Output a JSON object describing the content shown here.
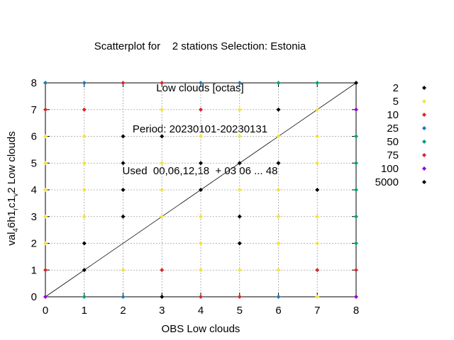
{
  "title_lines": [
    "Scatterplot for    2 stations Selection: Estonia",
    "Low clouds [octas]",
    "Period: 20230101-20230131",
    "Used  00,06,12,18  + 03 06 ... 48"
  ],
  "chart_data": {
    "type": "scatter",
    "xlabel": "OBS Low clouds",
    "ylabel": {
      "main": "val",
      "sub1": "4",
      "mid1": "6h1",
      "sub2": "r",
      "mid2": "c1",
      "sub3": "v",
      "end": "2 Low clouds"
    },
    "xlim": [
      0,
      8
    ],
    "ylim": [
      0,
      8
    ],
    "xticks": [
      "0",
      "1",
      "2",
      "3",
      "4",
      "5",
      "6",
      "7",
      "8"
    ],
    "yticks": [
      "0",
      "1",
      "2",
      "3",
      "4",
      "5",
      "6",
      "7",
      "8"
    ],
    "grid": true,
    "diagonal": true,
    "legend_position": "right",
    "legend": [
      {
        "label": "2",
        "color": "#000000"
      },
      {
        "label": "5",
        "color": "#f0e442"
      },
      {
        "label": "10",
        "color": "#d62728"
      },
      {
        "label": "25",
        "color": "#1f77b4"
      },
      {
        "label": "50",
        "color": "#009e73"
      },
      {
        "label": "75",
        "color": "#d62728"
      },
      {
        "label": "100",
        "color": "#9400d3"
      },
      {
        "label": "5000",
        "color": "#000000"
      }
    ],
    "points": [
      {
        "x": 0,
        "y": 0,
        "c": "#9400d3"
      },
      {
        "x": 0,
        "y": 1,
        "c": "#d62728"
      },
      {
        "x": 0,
        "y": 2,
        "c": "#f0e442"
      },
      {
        "x": 0,
        "y": 3,
        "c": "#f0e442"
      },
      {
        "x": 0,
        "y": 4,
        "c": "#f0e442"
      },
      {
        "x": 0,
        "y": 5,
        "c": "#f0e442"
      },
      {
        "x": 0,
        "y": 6,
        "c": "#f0e442"
      },
      {
        "x": 0,
        "y": 7,
        "c": "#d62728"
      },
      {
        "x": 0,
        "y": 8,
        "c": "#1f77b4"
      },
      {
        "x": 1,
        "y": 0,
        "c": "#009e73"
      },
      {
        "x": 1,
        "y": 1,
        "c": "#000000"
      },
      {
        "x": 1,
        "y": 2,
        "c": "#000000"
      },
      {
        "x": 1,
        "y": 3,
        "c": "#f0e442"
      },
      {
        "x": 1,
        "y": 4,
        "c": "#f0e442"
      },
      {
        "x": 1,
        "y": 5,
        "c": "#f0e442"
      },
      {
        "x": 1,
        "y": 6,
        "c": "#f0e442"
      },
      {
        "x": 1,
        "y": 7,
        "c": "#d62728"
      },
      {
        "x": 1,
        "y": 8,
        "c": "#1f77b4"
      },
      {
        "x": 2,
        "y": 0,
        "c": "#1f77b4"
      },
      {
        "x": 2,
        "y": 1,
        "c": "#f0e442"
      },
      {
        "x": 2,
        "y": 3,
        "c": "#000000"
      },
      {
        "x": 2,
        "y": 4,
        "c": "#000000"
      },
      {
        "x": 2,
        "y": 5,
        "c": "#000000"
      },
      {
        "x": 2,
        "y": 6,
        "c": "#000000"
      },
      {
        "x": 2,
        "y": 8,
        "c": "#d62728"
      },
      {
        "x": 3,
        "y": 0,
        "c": "#000000"
      },
      {
        "x": 3,
        "y": 1,
        "c": "#d62728"
      },
      {
        "x": 3,
        "y": 3,
        "c": "#f0e442"
      },
      {
        "x": 3,
        "y": 4,
        "c": "#f0e442"
      },
      {
        "x": 3,
        "y": 5,
        "c": "#f0e442"
      },
      {
        "x": 3,
        "y": 6,
        "c": "#000000"
      },
      {
        "x": 3,
        "y": 7,
        "c": "#f0e442"
      },
      {
        "x": 3,
        "y": 8,
        "c": "#d62728"
      },
      {
        "x": 4,
        "y": 0,
        "c": "#d62728"
      },
      {
        "x": 4,
        "y": 1,
        "c": "#f0e442"
      },
      {
        "x": 4,
        "y": 2,
        "c": "#f0e442"
      },
      {
        "x": 4,
        "y": 3,
        "c": "#f0e442"
      },
      {
        "x": 4,
        "y": 4,
        "c": "#000000"
      },
      {
        "x": 4,
        "y": 5,
        "c": "#000000"
      },
      {
        "x": 4,
        "y": 6,
        "c": "#f0e442"
      },
      {
        "x": 4,
        "y": 7,
        "c": "#d62728"
      },
      {
        "x": 4,
        "y": 8,
        "c": "#1f77b4"
      },
      {
        "x": 5,
        "y": 0,
        "c": "#d62728"
      },
      {
        "x": 5,
        "y": 1,
        "c": "#f0e442"
      },
      {
        "x": 5,
        "y": 2,
        "c": "#000000"
      },
      {
        "x": 5,
        "y": 3,
        "c": "#000000"
      },
      {
        "x": 5,
        "y": 4,
        "c": "#f0e442"
      },
      {
        "x": 5,
        "y": 5,
        "c": "#000000"
      },
      {
        "x": 5,
        "y": 6,
        "c": "#f0e442"
      },
      {
        "x": 5,
        "y": 7,
        "c": "#f0e442"
      },
      {
        "x": 5,
        "y": 8,
        "c": "#1f77b4"
      },
      {
        "x": 6,
        "y": 0,
        "c": "#1f77b4"
      },
      {
        "x": 6,
        "y": 1,
        "c": "#f0e442"
      },
      {
        "x": 6,
        "y": 2,
        "c": "#f0e442"
      },
      {
        "x": 6,
        "y": 3,
        "c": "#f0e442"
      },
      {
        "x": 6,
        "y": 4,
        "c": "#f0e442"
      },
      {
        "x": 6,
        "y": 5,
        "c": "#000000"
      },
      {
        "x": 6,
        "y": 6,
        "c": "#f0e442"
      },
      {
        "x": 6,
        "y": 7,
        "c": "#000000"
      },
      {
        "x": 6,
        "y": 8,
        "c": "#009e73"
      },
      {
        "x": 7,
        "y": 0,
        "c": "#f0e442"
      },
      {
        "x": 7,
        "y": 1,
        "c": "#d62728"
      },
      {
        "x": 7,
        "y": 2,
        "c": "#f0e442"
      },
      {
        "x": 7,
        "y": 3,
        "c": "#f0e442"
      },
      {
        "x": 7,
        "y": 4,
        "c": "#000000"
      },
      {
        "x": 7,
        "y": 5,
        "c": "#f0e442"
      },
      {
        "x": 7,
        "y": 6,
        "c": "#f0e442"
      },
      {
        "x": 7,
        "y": 7,
        "c": "#f0e442"
      },
      {
        "x": 7,
        "y": 8,
        "c": "#009e73"
      },
      {
        "x": 8,
        "y": 0,
        "c": "#9400d3"
      },
      {
        "x": 8,
        "y": 1,
        "c": "#d62728"
      },
      {
        "x": 8,
        "y": 2,
        "c": "#009e73"
      },
      {
        "x": 8,
        "y": 3,
        "c": "#009e73"
      },
      {
        "x": 8,
        "y": 4,
        "c": "#009e73"
      },
      {
        "x": 8,
        "y": 5,
        "c": "#009e73"
      },
      {
        "x": 8,
        "y": 6,
        "c": "#009e73"
      },
      {
        "x": 8,
        "y": 7,
        "c": "#9400d3"
      },
      {
        "x": 8,
        "y": 8,
        "c": "#000000"
      }
    ]
  }
}
